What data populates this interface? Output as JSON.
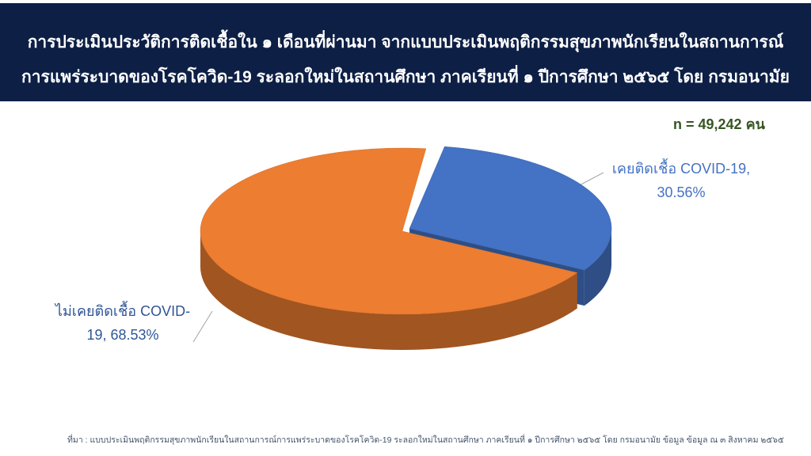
{
  "chart_data": {
    "type": "pie",
    "title": "การประเมินประวัติการติดเชื้อใน ๑ เดือนที่ผ่านมา จากแบบประเมินพฤติกรรมสุขภาพนักเรียนในสถานการณ์",
    "subtitle": "การแพร่ระบาดของโรคโควิด-19 ระลอกใหม่ในสถานศึกษา ภาคเรียนที่ ๑ ปีการศึกษา ๒๕๖๕ โดย กรมอนามัย",
    "annotation": "n = 49,242 คน",
    "source": "ที่มา : แบบประเมินพฤติกรรมสุขภาพนักเรียนในสถานการณ์การแพร่ระบาดของโรคโควิด-19 ระลอกใหม่ในสถานศึกษา ภาคเรียนที่ ๑ ปีการศึกษา ๒๕๖๕ โดย กรมอนามัย ข้อมูล ข้อมูล ณ ๓ สิงหาคม ๒๕๖๕",
    "categories": [
      "เคยติดเชื้อ COVID-19,",
      "ไม่เคยติดเชื้อ COVID-19,"
    ],
    "values": [
      30.56,
      68.53
    ],
    "value_labels": [
      "30.56%",
      "68.53%"
    ],
    "colors": [
      "#4472c4",
      "#ed7d31"
    ]
  }
}
